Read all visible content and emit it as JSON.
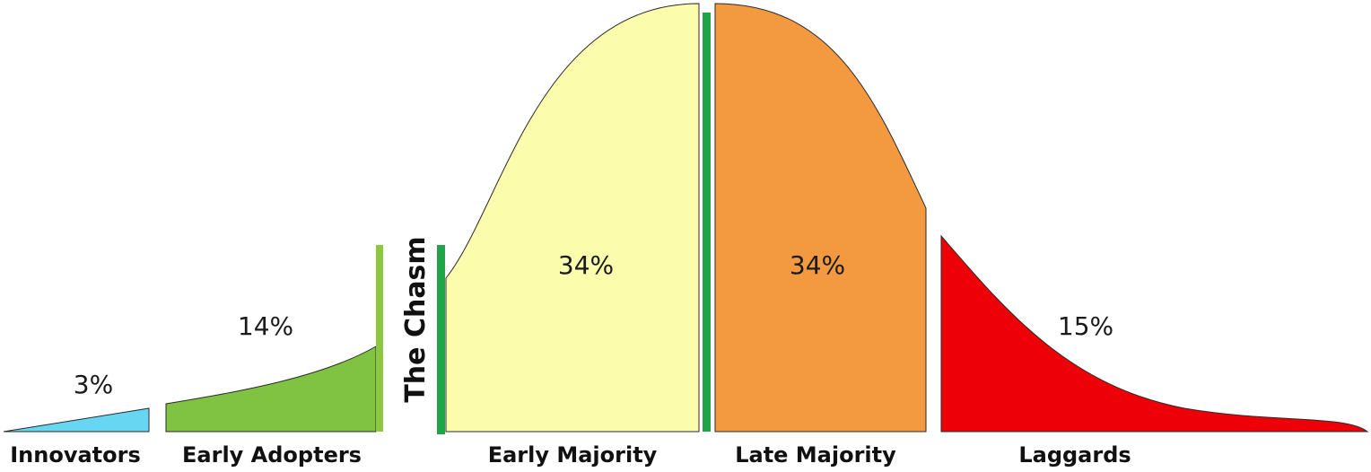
{
  "diagram": {
    "title": "",
    "chasm_label": "The Chasm",
    "segments": [
      {
        "id": "innovators",
        "label": "Innovators",
        "percent_label": "3%",
        "color": "#66D6F2"
      },
      {
        "id": "early_adopters",
        "label": "Early Adopters",
        "percent_label": "14%",
        "color": "#80C342"
      },
      {
        "id": "early_majority",
        "label": "Early Majority",
        "percent_label": "34%",
        "color": "#FCFCAD"
      },
      {
        "id": "late_majority",
        "label": "Late Majority",
        "percent_label": "34%",
        "color": "#F39A40"
      },
      {
        "id": "laggards",
        "label": "Laggards",
        "percent_label": "15%",
        "color": "#EE0008"
      }
    ],
    "divider_colors": {
      "chasm": "#21A348",
      "early_adopters_edge": "#8DC63F",
      "majority_divider": "#21A348"
    }
  }
}
